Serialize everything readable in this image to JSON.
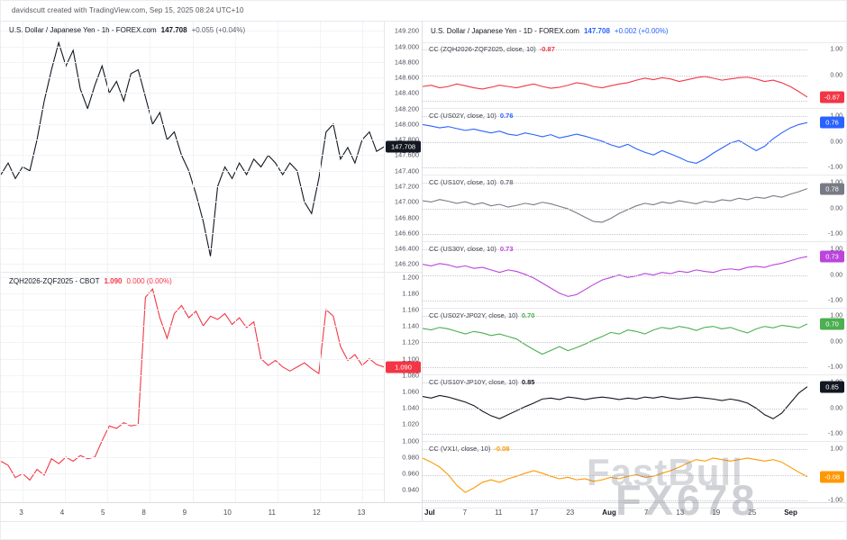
{
  "attribution": "davidscutt created with TradingView.com, Sep 15, 2025 08:24 UTC+10",
  "left_top": {
    "title": "U.S. Dollar / Japanese Yen - 1h - FOREX.com",
    "price": "147.708",
    "change": "+0.055 (+0.04%)"
  },
  "left_bottom": {
    "title": "ZQH2026-ZQF2025 - CBOT",
    "price": "1.090",
    "change": "0.000 (0.00%)"
  },
  "right": {
    "title": "U.S. Dollar / Japanese Yen - 1D - FOREX.com",
    "price": "147.708",
    "change": "+0.002 (+0.00%)",
    "panes": [
      {
        "label": "CC (ZQH2026-ZQF2025, close, 10)",
        "value": "-0.87"
      },
      {
        "label": "CC (US02Y, close, 10)",
        "value": "0.76"
      },
      {
        "label": "CC (US10Y, close, 10)",
        "value": "0.78"
      },
      {
        "label": "CC (US30Y, close, 10)",
        "value": "0.73"
      },
      {
        "label": "CC (US02Y-JP02Y, close, 10)",
        "value": "0.70"
      },
      {
        "label": "CC (US10Y-JP10Y, close, 10)",
        "value": "0.85"
      },
      {
        "label": "CC (VX1!, close, 10)",
        "value": "-0.08"
      }
    ]
  },
  "watermarks": {
    "center": "FastBull",
    "corner": "FX678"
  },
  "chart_data": {
    "left_time_labels": [
      "3",
      "4",
      "5",
      "8",
      "9",
      "10",
      "11",
      "12",
      "13"
    ],
    "right_time_labels": [
      "Jul",
      "7",
      "11",
      "17",
      "23",
      "Aug",
      "7",
      "13",
      "19",
      "25",
      "Sep"
    ],
    "series": [
      {
        "id": "usdjpy",
        "name": "USD/JPY 1h line",
        "type": "line",
        "color": "#131722",
        "badge": "147.708",
        "badge_bg": "#131722",
        "last": 147.708,
        "ylim": [
          146.1,
          149.32
        ],
        "axis_labels": [
          "149.200",
          "149.000",
          "148.800",
          "148.600",
          "148.400",
          "148.200",
          "148.000",
          "147.800",
          "147.600",
          "147.400",
          "147.200",
          "147.000",
          "146.800",
          "146.600",
          "146.400",
          "146.200"
        ],
        "values": [
          147.35,
          147.5,
          147.3,
          147.45,
          147.4,
          147.8,
          148.3,
          148.7,
          149.05,
          148.75,
          148.95,
          148.45,
          148.2,
          148.5,
          148.75,
          148.4,
          148.55,
          148.3,
          148.65,
          148.7,
          148.35,
          148.0,
          148.15,
          147.8,
          147.9,
          147.6,
          147.4,
          147.1,
          146.75,
          146.3,
          147.2,
          147.45,
          147.3,
          147.5,
          147.35,
          147.55,
          147.45,
          147.6,
          147.5,
          147.35,
          147.5,
          147.4,
          147.0,
          146.85,
          147.3,
          147.9,
          148.0,
          147.55,
          147.7,
          147.5,
          147.8,
          147.9,
          147.65,
          147.708
        ]
      },
      {
        "id": "zq",
        "name": "ZQH2026-ZQF2025 spread",
        "type": "line",
        "color": "#f23645",
        "badge": "1.090",
        "badge_bg": "#f23645",
        "last": 1.09,
        "ylim": [
          0.925,
          1.205
        ],
        "axis_labels": [
          "1.200",
          "1.180",
          "1.160",
          "1.140",
          "1.120",
          "1.100",
          "1.080",
          "1.060",
          "1.040",
          "1.020",
          "1.000",
          "0.980",
          "0.960",
          "0.940"
        ],
        "values": [
          0.975,
          0.97,
          0.955,
          0.96,
          0.952,
          0.965,
          0.958,
          0.978,
          0.972,
          0.98,
          0.975,
          0.982,
          0.978,
          0.98,
          1.0,
          1.018,
          1.015,
          1.022,
          1.018,
          1.02,
          1.175,
          1.185,
          1.15,
          1.125,
          1.155,
          1.165,
          1.15,
          1.158,
          1.14,
          1.152,
          1.148,
          1.155,
          1.142,
          1.15,
          1.138,
          1.145,
          1.1,
          1.092,
          1.098,
          1.09,
          1.085,
          1.09,
          1.095,
          1.088,
          1.082,
          1.16,
          1.152,
          1.115,
          1.098,
          1.105,
          1.092,
          1.1,
          1.093,
          1.09
        ]
      },
      {
        "id": "cc1",
        "name": "CC ZQH2026-ZQF2025",
        "type": "line",
        "color": "#f23645",
        "badge": "-0.87",
        "last": -0.87,
        "ylim": [
          -1.3,
          1.3
        ],
        "axis_labels": [
          "1.00",
          "0.00",
          "-1.00"
        ],
        "values": [
          -0.45,
          -0.4,
          -0.5,
          -0.45,
          -0.35,
          -0.42,
          -0.5,
          -0.55,
          -0.48,
          -0.4,
          -0.45,
          -0.5,
          -0.42,
          -0.35,
          -0.45,
          -0.52,
          -0.48,
          -0.4,
          -0.3,
          -0.35,
          -0.45,
          -0.5,
          -0.42,
          -0.35,
          -0.3,
          -0.2,
          -0.12,
          -0.18,
          -0.1,
          -0.15,
          -0.25,
          -0.18,
          -0.1,
          -0.05,
          -0.12,
          -0.2,
          -0.15,
          -0.1,
          -0.08,
          -0.15,
          -0.25,
          -0.2,
          -0.3,
          -0.45,
          -0.65,
          -0.87
        ]
      },
      {
        "id": "cc2",
        "name": "CC US02Y",
        "type": "line",
        "color": "#2962ff",
        "badge": "0.76",
        "last": 0.76,
        "ylim": [
          -1.3,
          1.3
        ],
        "axis_labels": [
          "1.00",
          "0.00",
          "-1.00"
        ],
        "values": [
          0.68,
          0.62,
          0.55,
          0.6,
          0.52,
          0.45,
          0.5,
          0.42,
          0.35,
          0.42,
          0.3,
          0.25,
          0.35,
          0.28,
          0.2,
          0.28,
          0.15,
          0.22,
          0.3,
          0.22,
          0.12,
          0.02,
          -0.12,
          -0.22,
          -0.1,
          -0.28,
          -0.42,
          -0.52,
          -0.35,
          -0.48,
          -0.62,
          -0.78,
          -0.85,
          -0.68,
          -0.45,
          -0.25,
          -0.05,
          0.05,
          -0.15,
          -0.35,
          -0.18,
          0.12,
          0.35,
          0.55,
          0.68,
          0.76
        ]
      },
      {
        "id": "cc3",
        "name": "CC US10Y",
        "type": "line",
        "color": "#787b86",
        "badge": "0.78",
        "last": 0.78,
        "ylim": [
          -1.3,
          1.3
        ],
        "axis_labels": [
          "1.00",
          "0.00",
          "-1.00"
        ],
        "values": [
          0.3,
          0.25,
          0.35,
          0.28,
          0.2,
          0.26,
          0.15,
          0.22,
          0.1,
          0.16,
          0.05,
          0.12,
          0.2,
          0.14,
          0.24,
          0.18,
          0.08,
          -0.02,
          -0.18,
          -0.35,
          -0.52,
          -0.55,
          -0.4,
          -0.2,
          -0.05,
          0.1,
          0.2,
          0.14,
          0.25,
          0.2,
          0.3,
          0.24,
          0.18,
          0.28,
          0.24,
          0.34,
          0.3,
          0.4,
          0.34,
          0.44,
          0.4,
          0.5,
          0.44,
          0.56,
          0.66,
          0.78
        ]
      },
      {
        "id": "cc4",
        "name": "CC US30Y",
        "type": "line",
        "color": "#bb44dd",
        "badge": "0.73",
        "last": 0.73,
        "ylim": [
          -1.3,
          1.3
        ],
        "axis_labels": [
          "1.00",
          "0.00",
          "-1.00"
        ],
        "values": [
          0.42,
          0.36,
          0.45,
          0.4,
          0.3,
          0.36,
          0.26,
          0.3,
          0.2,
          0.1,
          0.2,
          0.14,
          0.02,
          -0.12,
          -0.32,
          -0.52,
          -0.72,
          -0.85,
          -0.78,
          -0.58,
          -0.38,
          -0.2,
          -0.1,
          0.0,
          -0.1,
          -0.04,
          0.06,
          0.0,
          0.1,
          0.05,
          0.15,
          0.1,
          0.2,
          0.14,
          0.1,
          0.2,
          0.24,
          0.2,
          0.3,
          0.34,
          0.3,
          0.4,
          0.46,
          0.56,
          0.66,
          0.73
        ]
      },
      {
        "id": "cc5",
        "name": "CC US02Y-JP02Y",
        "type": "line",
        "color": "#4caf50",
        "badge": "0.70",
        "last": 0.7,
        "ylim": [
          -1.3,
          1.3
        ],
        "axis_labels": [
          "1.00",
          "0.00",
          "-1.00"
        ],
        "values": [
          0.52,
          0.46,
          0.56,
          0.5,
          0.4,
          0.3,
          0.4,
          0.34,
          0.24,
          0.3,
          0.2,
          0.1,
          -0.12,
          -0.32,
          -0.5,
          -0.35,
          -0.2,
          -0.36,
          -0.24,
          -0.1,
          0.06,
          0.2,
          0.36,
          0.3,
          0.46,
          0.4,
          0.3,
          0.46,
          0.56,
          0.5,
          0.6,
          0.54,
          0.44,
          0.56,
          0.6,
          0.5,
          0.56,
          0.44,
          0.34,
          0.5,
          0.6,
          0.54,
          0.64,
          0.6,
          0.54,
          0.7
        ]
      },
      {
        "id": "cc6",
        "name": "CC US10Y-JP10Y",
        "type": "line",
        "color": "#131722",
        "badge": "0.85",
        "last": 0.85,
        "ylim": [
          -1.3,
          1.3
        ],
        "axis_labels": [
          "1.00",
          "0.00",
          "-1.00"
        ],
        "values": [
          0.46,
          0.4,
          0.5,
          0.44,
          0.34,
          0.24,
          0.1,
          -0.12,
          -0.3,
          -0.42,
          -0.26,
          -0.1,
          0.06,
          0.2,
          0.36,
          0.4,
          0.34,
          0.44,
          0.4,
          0.34,
          0.4,
          0.44,
          0.4,
          0.34,
          0.4,
          0.36,
          0.44,
          0.4,
          0.46,
          0.4,
          0.36,
          0.4,
          0.44,
          0.4,
          0.36,
          0.3,
          0.36,
          0.3,
          0.2,
          0.0,
          -0.26,
          -0.42,
          -0.2,
          0.2,
          0.6,
          0.85
        ]
      },
      {
        "id": "cc7",
        "name": "CC VX1!",
        "type": "line",
        "color": "#ff9800",
        "badge": "-0.08",
        "last": -0.08,
        "ylim": [
          -1.3,
          1.3
        ],
        "axis_labels": [
          "1.00",
          "0.00",
          "-1.00"
        ],
        "values": [
          0.66,
          0.5,
          0.3,
          0.0,
          -0.42,
          -0.7,
          -0.52,
          -0.3,
          -0.2,
          -0.3,
          -0.16,
          -0.06,
          0.06,
          0.16,
          0.06,
          -0.06,
          -0.16,
          -0.1,
          -0.2,
          -0.16,
          -0.26,
          -0.2,
          -0.1,
          -0.16,
          -0.06,
          0.0,
          -0.1,
          -0.06,
          0.06,
          0.16,
          0.3,
          0.46,
          0.6,
          0.54,
          0.66,
          0.6,
          0.54,
          0.6,
          0.66,
          0.6,
          0.54,
          0.6,
          0.5,
          0.3,
          0.1,
          -0.08
        ]
      }
    ]
  }
}
